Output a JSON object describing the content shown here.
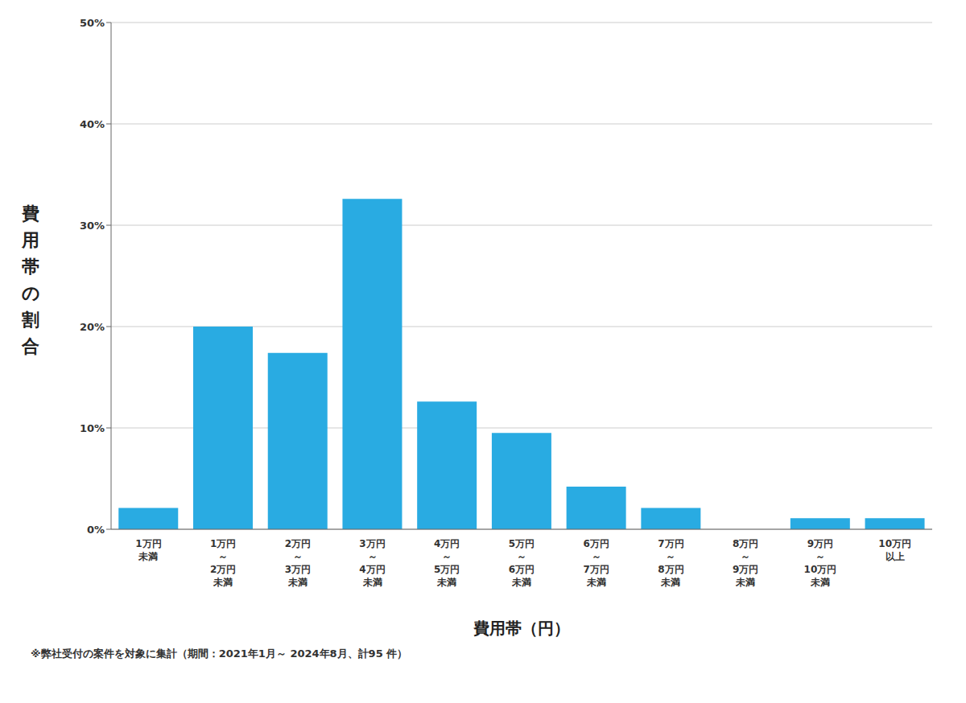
{
  "chart_data": {
    "type": "bar",
    "categories": [
      "1万円\n未満",
      "1万円\n～\n2万円\n未満",
      "2万円\n～\n3万円\n未満",
      "3万円\n～\n4万円\n未満",
      "4万円\n～\n5万円\n未満",
      "5万円\n～\n6万円\n未満",
      "6万円\n～\n7万円\n未満",
      "7万円\n～\n8万円\n未満",
      "8万円\n～\n9万円\n未満",
      "9万円\n～\n10万円\n未満",
      "10万円\n以上"
    ],
    "values": [
      2.1,
      20.0,
      17.4,
      32.6,
      12.6,
      9.5,
      4.2,
      2.1,
      0.0,
      1.1,
      1.1
    ],
    "color": "#29ABE2",
    "xlabel": "費用帯（円）",
    "ylabel": "費用帯の割合",
    "annotations": [
      "※弊社受付の案件を対象に集計（期間：2021年1月～ 2024年8月、計95 件）"
    ],
    "ylim": [
      0,
      50
    ],
    "yticks": [
      {
        "value": 0,
        "label": "0%"
      },
      {
        "value": 10,
        "label": "10%"
      },
      {
        "value": 20,
        "label": "20%"
      },
      {
        "value": 30,
        "label": "30%"
      },
      {
        "value": 40,
        "label": "40%"
      },
      {
        "value": 50,
        "label": "50%"
      }
    ],
    "grid": true
  }
}
